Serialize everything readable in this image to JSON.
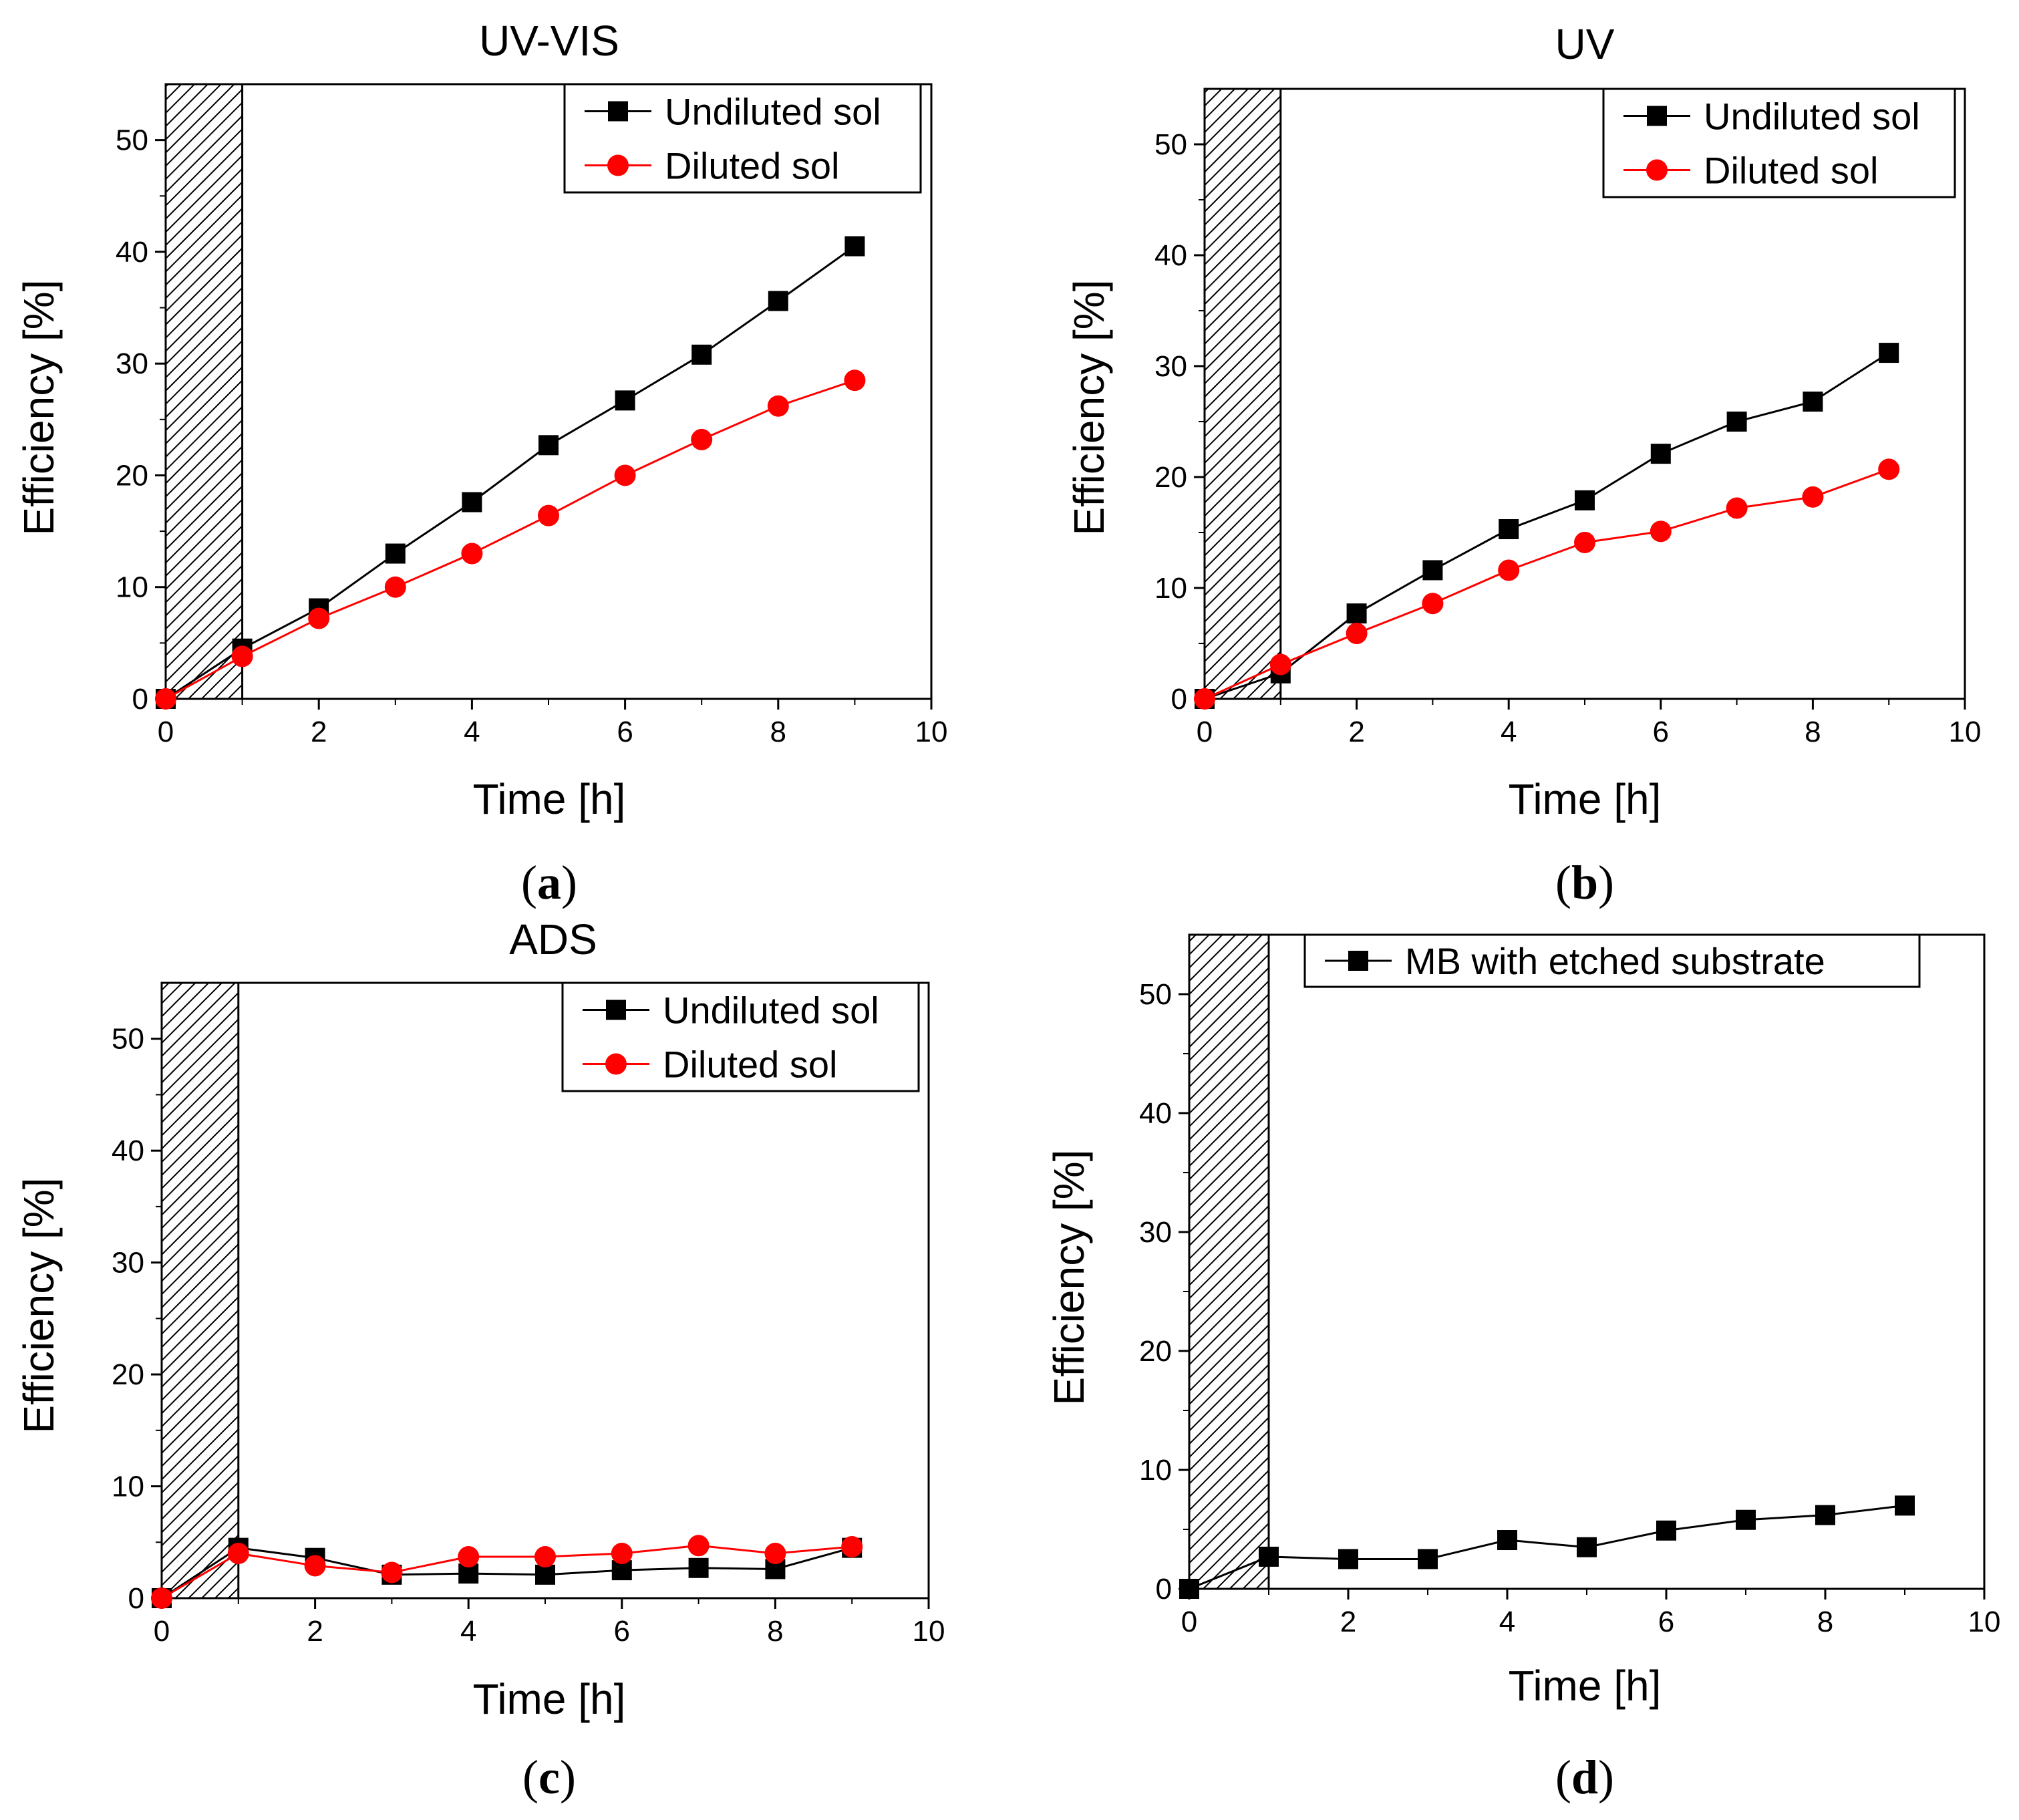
{
  "chart_data": [
    {
      "type": "line",
      "panel": "(a)",
      "caption_letter": "a",
      "title": "UV-VIS",
      "xlabel": "Time [h]",
      "ylabel": "Efficiency [%]",
      "xlim": [
        0,
        10
      ],
      "ylim": [
        0,
        55
      ],
      "xticks": [
        0,
        2,
        4,
        6,
        8,
        10
      ],
      "yticks": [
        0,
        10,
        20,
        30,
        40,
        50
      ],
      "shaded_region_x": [
        0,
        1
      ],
      "legend_position": "top-right",
      "grid": false,
      "series": [
        {
          "name": "Undiluted sol",
          "marker": "square",
          "color": "#000000",
          "x": [
            0,
            1,
            2,
            3,
            4,
            5,
            6,
            7,
            8,
            9
          ],
          "y": [
            0,
            4.5,
            8.1,
            13.0,
            17.6,
            22.7,
            26.7,
            30.8,
            35.6,
            40.5
          ]
        },
        {
          "name": "Diluted sol",
          "marker": "circle",
          "color": "#ff0000",
          "x": [
            0,
            1,
            2,
            3,
            4,
            5,
            6,
            7,
            8,
            9
          ],
          "y": [
            0,
            3.8,
            7.2,
            10.0,
            13.0,
            16.4,
            20.0,
            23.2,
            26.2,
            28.5
          ]
        }
      ]
    },
    {
      "type": "line",
      "panel": "(b)",
      "caption_letter": "b",
      "title": "UV",
      "xlabel": "Time [h]",
      "ylabel": "Efficiency [%]",
      "xlim": [
        0,
        10
      ],
      "ylim": [
        0,
        55
      ],
      "xticks": [
        0,
        2,
        4,
        6,
        8,
        10
      ],
      "yticks": [
        0,
        10,
        20,
        30,
        40,
        50
      ],
      "shaded_region_x": [
        0,
        1
      ],
      "legend_position": "top-right",
      "grid": false,
      "series": [
        {
          "name": "Undiluted sol",
          "marker": "square",
          "color": "#000000",
          "x": [
            0,
            1,
            2,
            3,
            4,
            5,
            6,
            7,
            8,
            9
          ],
          "y": [
            0,
            2.3,
            7.7,
            11.6,
            15.3,
            17.9,
            22.1,
            25.0,
            26.8,
            31.2
          ]
        },
        {
          "name": "Diluted sol",
          "marker": "circle",
          "color": "#ff0000",
          "x": [
            0,
            1,
            2,
            3,
            4,
            5,
            6,
            7,
            8,
            9
          ],
          "y": [
            0,
            3.1,
            5.9,
            8.6,
            11.6,
            14.1,
            15.1,
            17.2,
            18.2,
            20.7
          ]
        }
      ]
    },
    {
      "type": "line",
      "panel": "(c)",
      "caption_letter": "c",
      "title": "ADS",
      "xlabel": "Time [h]",
      "ylabel": "Efficiency [%]",
      "xlim": [
        0,
        10
      ],
      "ylim": [
        0,
        55
      ],
      "xticks": [
        0,
        2,
        4,
        6,
        8,
        10
      ],
      "yticks": [
        0,
        10,
        20,
        30,
        40,
        50
      ],
      "shaded_region_x": [
        0,
        1
      ],
      "legend_position": "top-right",
      "grid": false,
      "series": [
        {
          "name": "Undiluted sol",
          "marker": "square",
          "color": "#000000",
          "x": [
            0,
            1,
            2,
            3,
            4,
            5,
            6,
            7,
            8,
            9
          ],
          "y": [
            0,
            4.5,
            3.6,
            2.1,
            2.2,
            2.1,
            2.5,
            2.7,
            2.6,
            4.5
          ]
        },
        {
          "name": "Diluted sol",
          "marker": "circle",
          "color": "#ff0000",
          "x": [
            0,
            1,
            2,
            3,
            4,
            5,
            6,
            7,
            8,
            9
          ],
          "y": [
            0,
            4.0,
            2.9,
            2.3,
            3.7,
            3.7,
            4.0,
            4.7,
            4.0,
            4.6
          ]
        }
      ]
    },
    {
      "type": "line",
      "panel": "(d)",
      "caption_letter": "d",
      "title": "",
      "xlabel": "Time [h]",
      "ylabel": "Efficiency [%]",
      "xlim": [
        0,
        10
      ],
      "ylim": [
        0,
        55
      ],
      "xticks": [
        0,
        2,
        4,
        6,
        8,
        10
      ],
      "yticks": [
        0,
        10,
        20,
        30,
        40,
        50
      ],
      "shaded_region_x": [
        0,
        1
      ],
      "legend_position": "top-right",
      "grid": false,
      "series": [
        {
          "name": "MB with etched substrate",
          "marker": "square",
          "color": "#000000",
          "x": [
            0,
            1,
            2,
            3,
            4,
            5,
            6,
            7,
            8,
            9
          ],
          "y": [
            0,
            2.7,
            2.5,
            2.5,
            4.1,
            3.5,
            4.9,
            5.8,
            6.2,
            7.0
          ]
        }
      ]
    }
  ]
}
